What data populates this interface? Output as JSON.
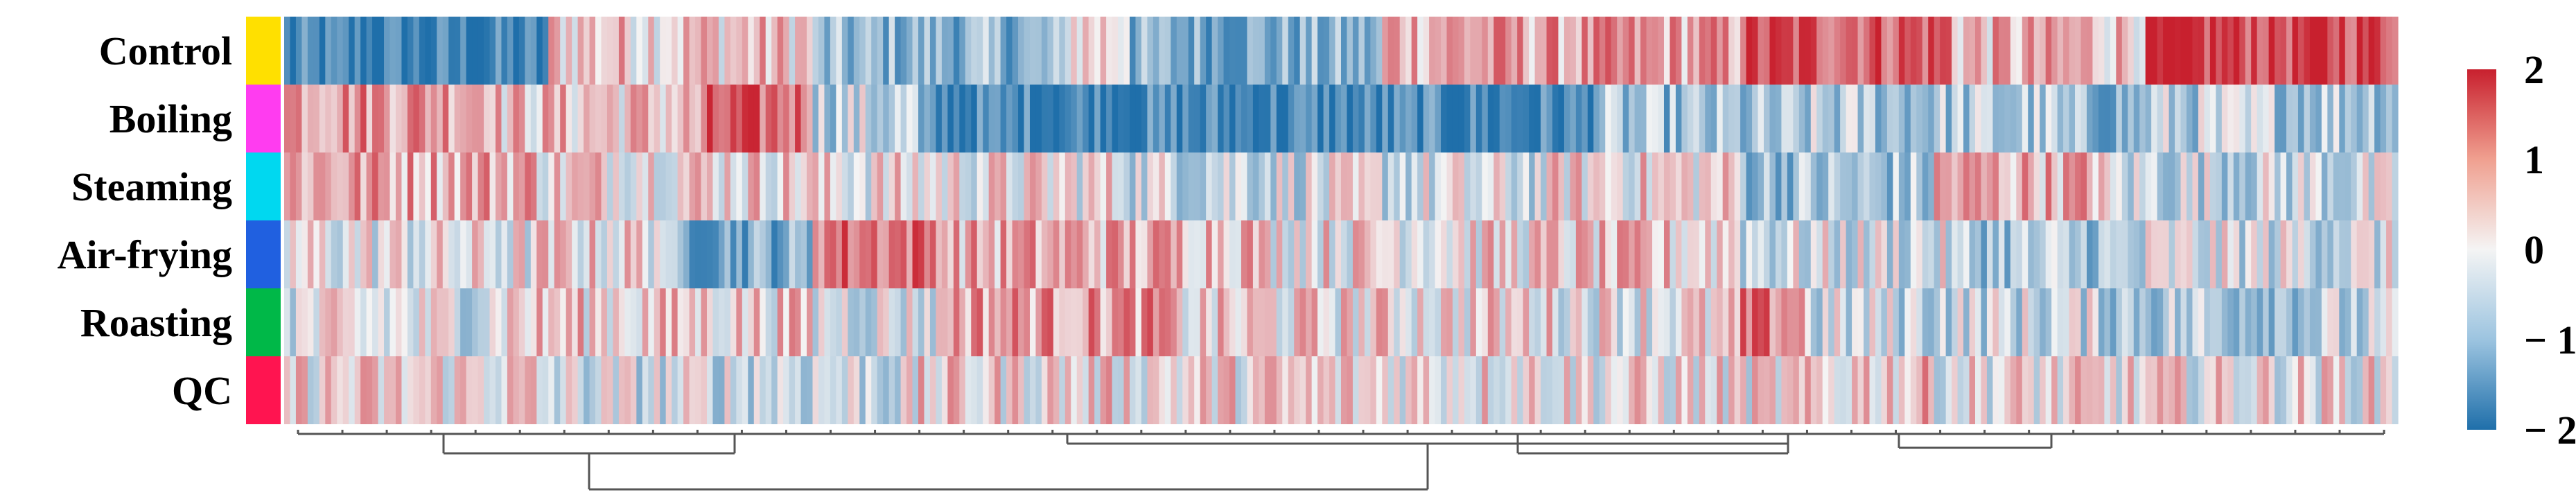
{
  "chart_data": {
    "type": "heatmap",
    "title": "",
    "xlabel": "",
    "ylabel": "",
    "rows": [
      "Control",
      "Boiling",
      "Steaming",
      "Air-frying",
      "Roasting",
      "QC"
    ],
    "row_group_colors": [
      "#FFE000",
      "#FF3CF0",
      "#00D8F0",
      "#2060E0",
      "#00B848",
      "#FF1450"
    ],
    "columns_description_count": 360,
    "color_scale": {
      "min": -2,
      "max": 2,
      "ticks": [
        "2",
        "1",
        "0",
        "− 1",
        "− 2"
      ],
      "tick_values": [
        2,
        1,
        0,
        -1,
        -2
      ],
      "colors": [
        "#1F6FAA",
        "#F4F4F4",
        "#C8202E"
      ]
    },
    "cluster_blocks": [
      {
        "row": "Control",
        "segments": [
          [
            0,
            0.125,
            -1.7
          ],
          [
            0.125,
            0.25,
            0.4
          ],
          [
            0.25,
            0.37,
            -0.9
          ],
          [
            0.37,
            0.4,
            0.3
          ],
          [
            0.4,
            0.52,
            -1.0
          ],
          [
            0.52,
            0.69,
            0.7
          ],
          [
            0.69,
            0.79,
            1.4
          ],
          [
            0.79,
            0.88,
            0.5
          ],
          [
            0.88,
            1.0,
            1.6
          ]
        ]
      },
      {
        "row": "Boiling",
        "segments": [
          [
            0,
            0.1,
            0.9
          ],
          [
            0.1,
            0.2,
            0.4
          ],
          [
            0.2,
            0.25,
            1.2
          ],
          [
            0.25,
            0.3,
            -0.4
          ],
          [
            0.3,
            0.62,
            -1.6
          ],
          [
            0.62,
            0.72,
            -0.8
          ],
          [
            0.72,
            0.84,
            -0.6
          ],
          [
            0.84,
            0.88,
            -0.9
          ],
          [
            0.88,
            1.0,
            -0.5
          ]
        ]
      },
      {
        "row": "Steaming",
        "segments": [
          [
            0,
            0.12,
            0.7
          ],
          [
            0.12,
            0.25,
            0.3
          ],
          [
            0.25,
            0.4,
            0.1
          ],
          [
            0.4,
            0.6,
            -0.2
          ],
          [
            0.6,
            0.69,
            0.2
          ],
          [
            0.69,
            0.78,
            -0.7
          ],
          [
            0.78,
            0.86,
            0.6
          ],
          [
            0.86,
            1.0,
            -0.3
          ]
        ]
      },
      {
        "row": "Air-frying",
        "segments": [
          [
            0,
            0.12,
            0.0
          ],
          [
            0.12,
            0.18,
            0.2
          ],
          [
            0.18,
            0.25,
            -1.0
          ],
          [
            0.25,
            0.31,
            1.2
          ],
          [
            0.31,
            0.46,
            0.6
          ],
          [
            0.46,
            0.6,
            0.2
          ],
          [
            0.6,
            0.69,
            0.3
          ],
          [
            0.69,
            0.79,
            -0.2
          ],
          [
            0.79,
            0.88,
            -0.6
          ],
          [
            0.88,
            1.0,
            -0.2
          ]
        ]
      },
      {
        "row": "Roasting",
        "segments": [
          [
            0,
            0.1,
            -0.1
          ],
          [
            0.1,
            0.25,
            0.3
          ],
          [
            0.25,
            0.31,
            -0.1
          ],
          [
            0.31,
            0.42,
            0.8
          ],
          [
            0.42,
            0.6,
            0.2
          ],
          [
            0.6,
            0.69,
            0.1
          ],
          [
            0.69,
            0.72,
            1.0
          ],
          [
            0.72,
            0.86,
            -0.3
          ],
          [
            0.86,
            1.0,
            -0.5
          ]
        ]
      },
      {
        "row": "QC",
        "segments": [
          [
            0,
            0.12,
            0.2
          ],
          [
            0.12,
            0.3,
            -0.2
          ],
          [
            0.3,
            0.6,
            0.2
          ],
          [
            0.6,
            0.74,
            0.1
          ],
          [
            0.74,
            0.78,
            0.4
          ],
          [
            0.78,
            1.0,
            0.1
          ]
        ]
      }
    ],
    "legend": "right"
  }
}
